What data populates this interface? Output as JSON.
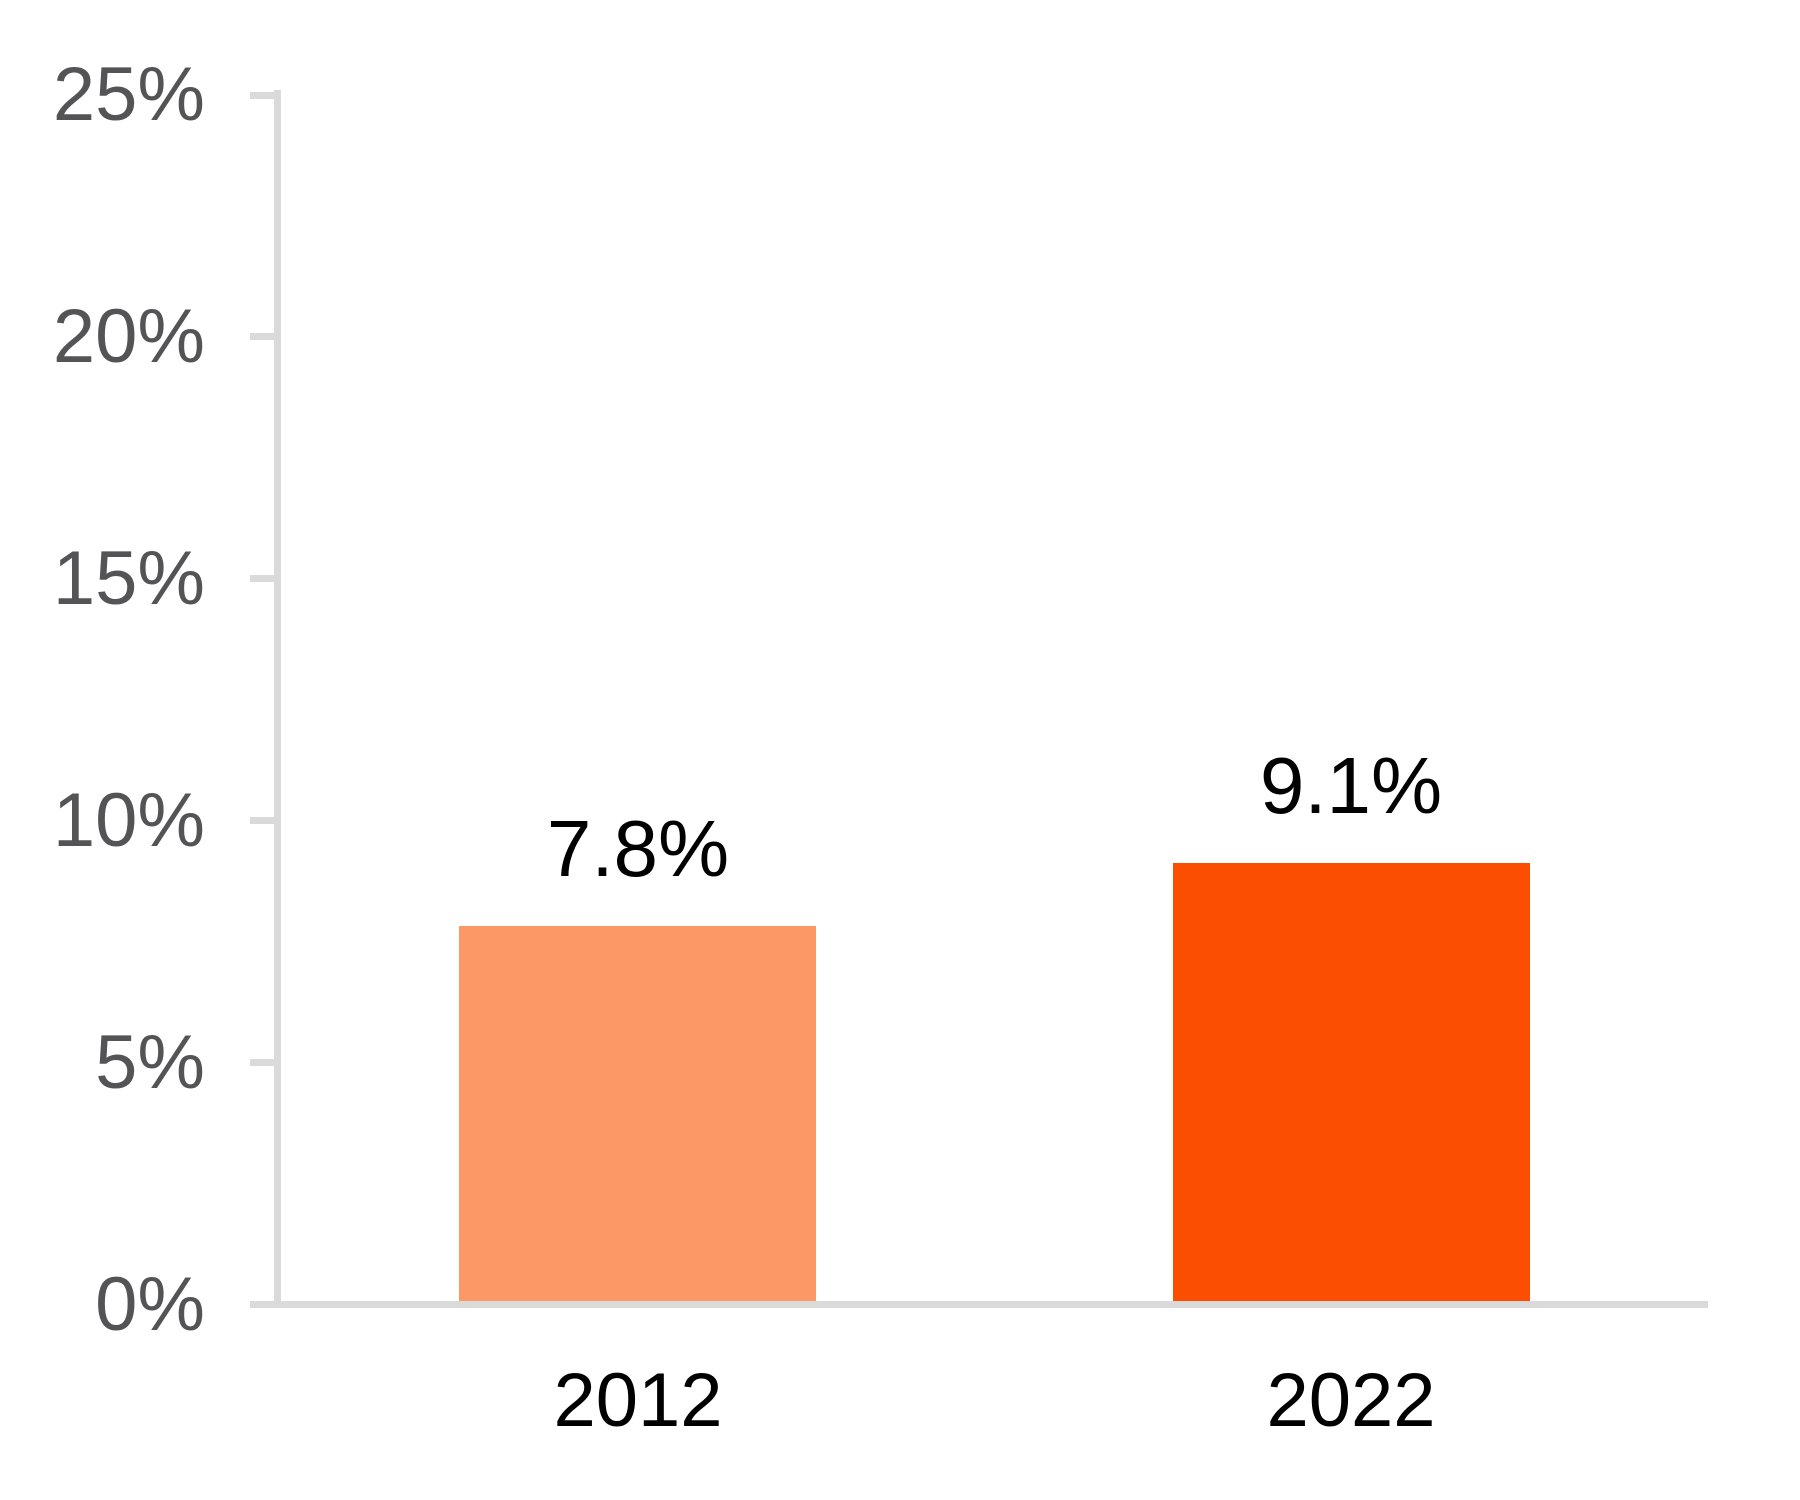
{
  "chart_data": {
    "type": "bar",
    "title": "",
    "categories": [
      "2012",
      "2022"
    ],
    "values": [
      7.8,
      9.1
    ],
    "value_labels": [
      "7.8%",
      "9.1%"
    ],
    "bar_colors": [
      "#FC9865",
      "#FB4E00"
    ],
    "xlabel": "",
    "ylabel": "",
    "ylim": [
      0,
      25
    ],
    "yticks": [
      0,
      5,
      10,
      15,
      20,
      25
    ],
    "ytick_labels": [
      "0%",
      "5%",
      "10%",
      "15%",
      "20%",
      "25%"
    ],
    "grid": false,
    "legend": false,
    "layout_hints": {
      "bar_label_position": "above-bar",
      "tick_label_side": "left",
      "axis_style": "left-and-bottom-only"
    }
  },
  "colors": {
    "background": "#FFFFFF",
    "axis": "#DADADA",
    "tick_label_text": "#545456",
    "data_label_text": "#000000",
    "category_label_text": "#000000",
    "bar_2012": "#FC9865",
    "bar_2022": "#FB4E00"
  }
}
